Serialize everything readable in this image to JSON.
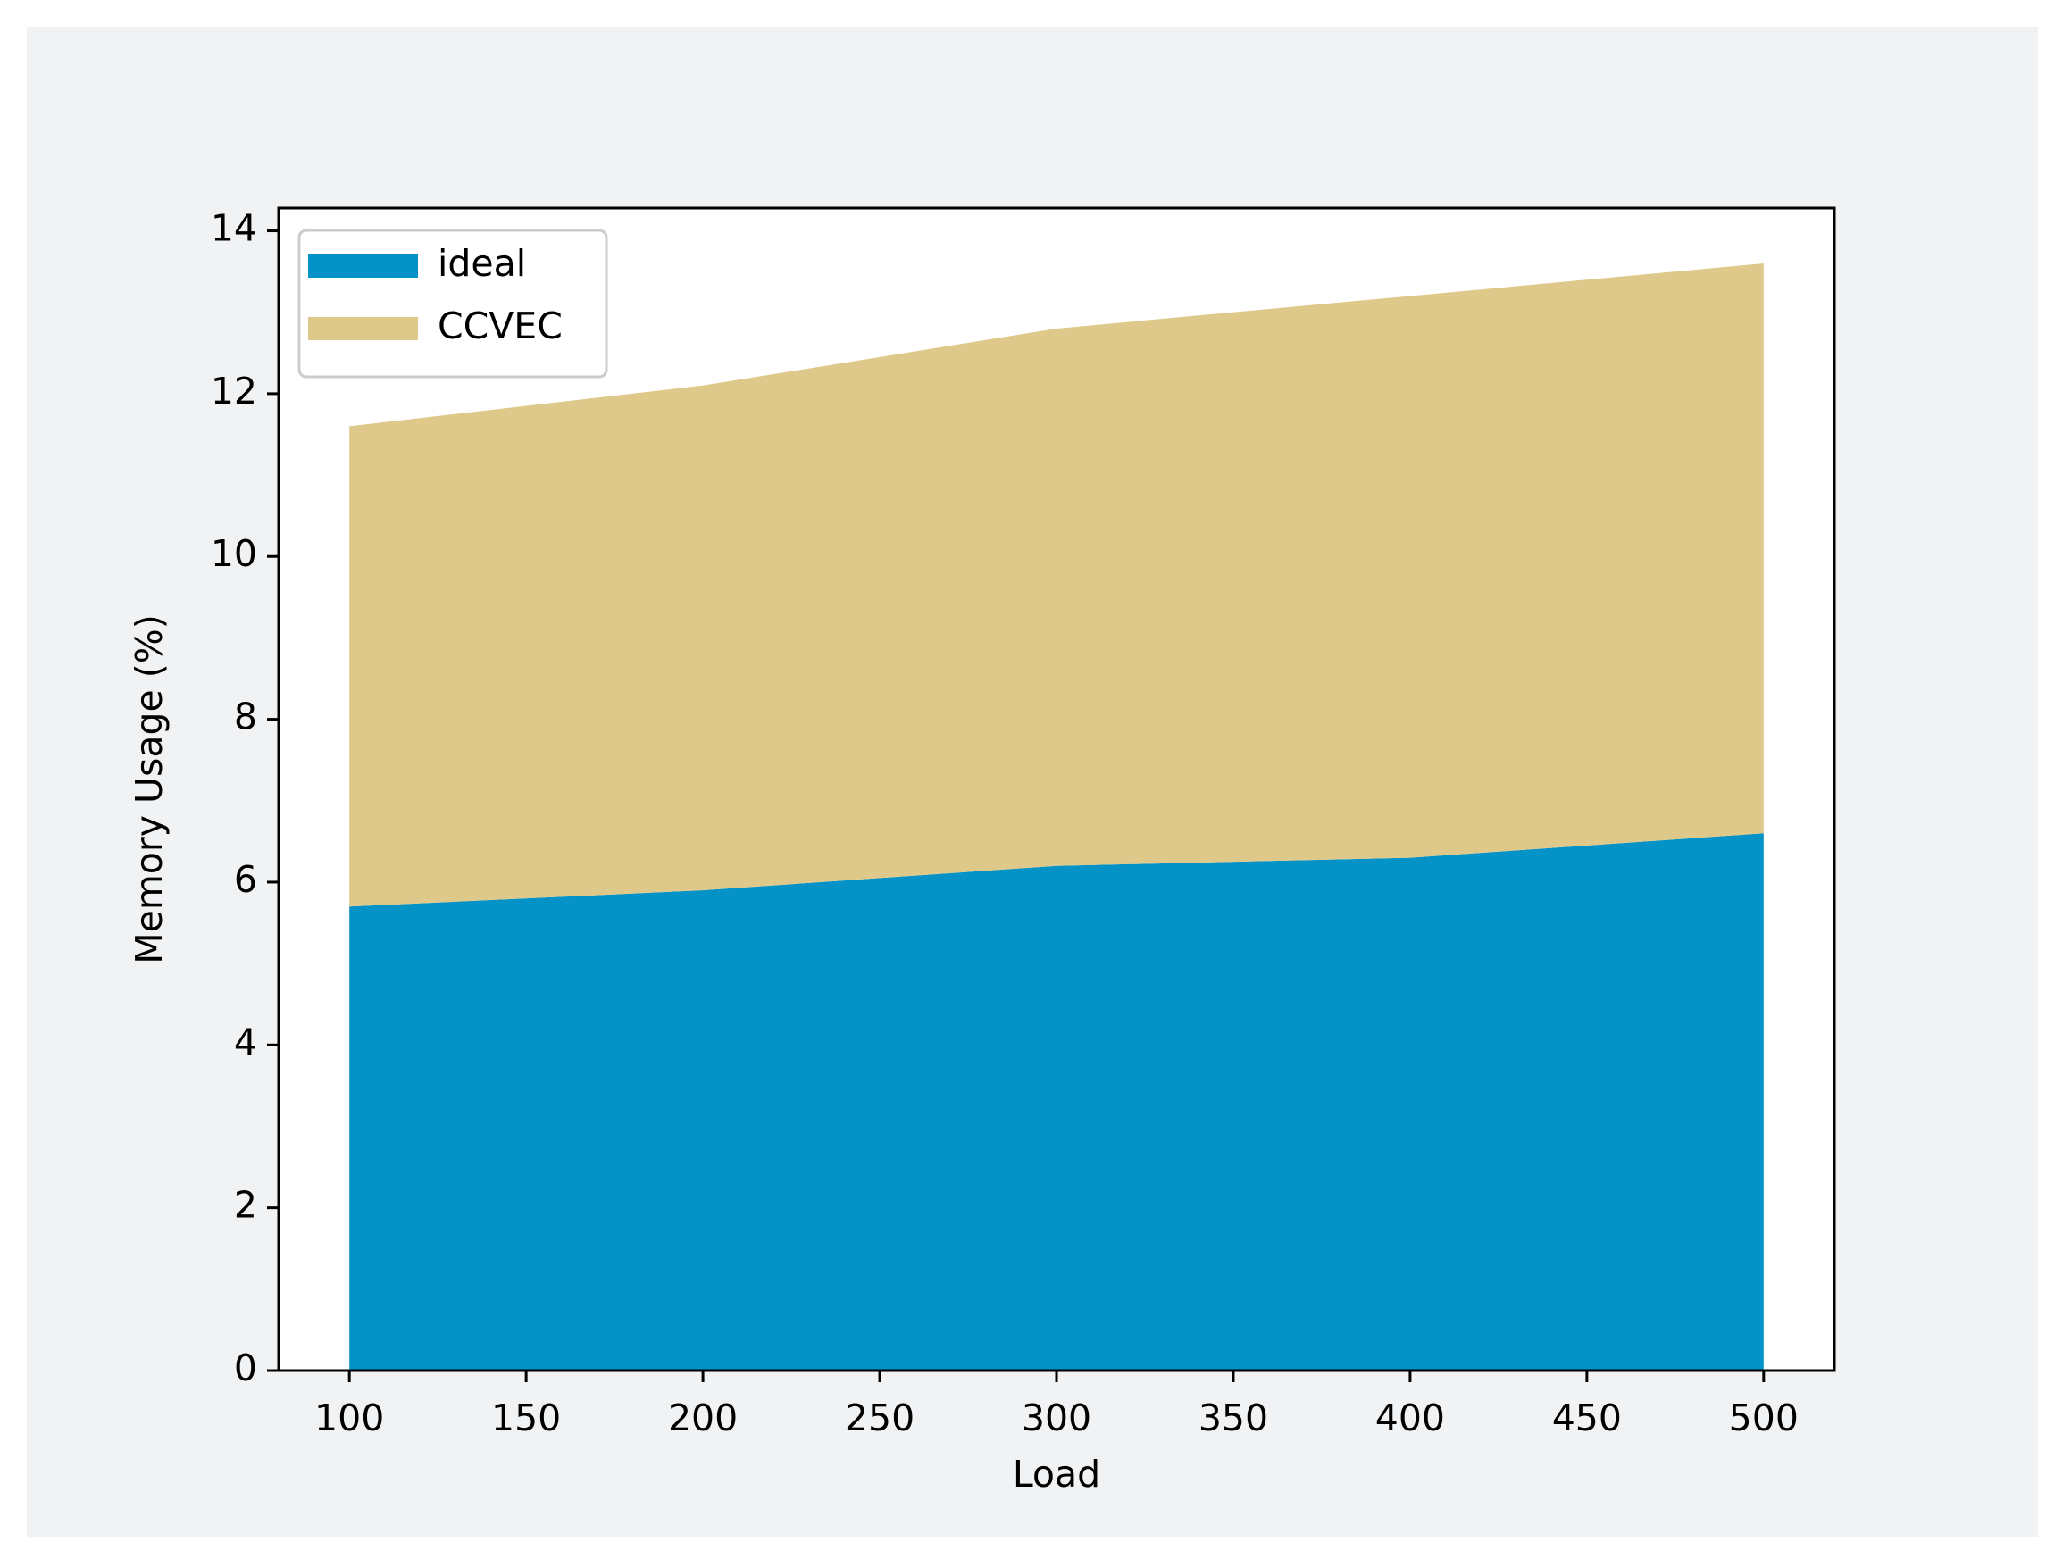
{
  "chart_data": {
    "type": "stacked_area",
    "xlabel": "Load",
    "ylabel": "Memory Usage (%)",
    "x": [
      100,
      200,
      300,
      400,
      500
    ],
    "series": [
      {
        "name": "ideal",
        "color": "#0592c6",
        "values": [
          5.7,
          5.9,
          6.2,
          6.3,
          6.6
        ]
      },
      {
        "name": "CCVEC",
        "color": "#dec98b",
        "values": [
          5.9,
          6.2,
          6.6,
          6.9,
          7.0
        ]
      }
    ],
    "xlim": [
      80,
      520
    ],
    "ylim": [
      0,
      14.28
    ],
    "xticks": [
      100,
      150,
      200,
      250,
      300,
      350,
      400,
      450,
      500
    ],
    "yticks": [
      0,
      2,
      4,
      6,
      8,
      10,
      12,
      14
    ],
    "legend": "upper left",
    "grid": false
  }
}
